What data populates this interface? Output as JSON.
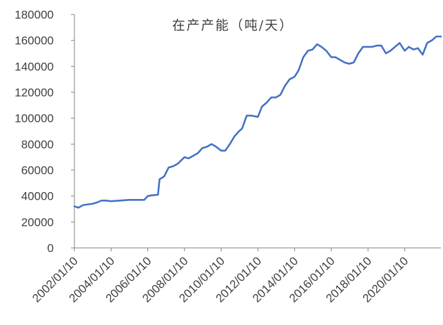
{
  "chart_data": {
    "type": "line",
    "title": "在产产能（吨/天）",
    "xlabel": "",
    "ylabel": "",
    "ylim": [
      0,
      180000
    ],
    "yticks": [
      0,
      20000,
      40000,
      60000,
      80000,
      100000,
      120000,
      140000,
      160000,
      180000
    ],
    "xlim": [
      "2002-01-10",
      "2021-12-31"
    ],
    "xticks": [
      "2002/01/10",
      "2004/01/10",
      "2006/01/10",
      "2008/01/10",
      "2010/01/10",
      "2012/01/10",
      "2014/01/10",
      "2016/01/10",
      "2018/01/10",
      "2020/01/10"
    ],
    "grid": false,
    "legend": "none",
    "color": "#4472C4",
    "series": [
      {
        "x": [
          "2002-01-10",
          "2002-04-01",
          "2002-07-01",
          "2002-10-01",
          "2003-01-01",
          "2003-04-01",
          "2003-07-01",
          "2003-10-01",
          "2004-01-10",
          "2004-07-01",
          "2005-01-01",
          "2005-04-01",
          "2005-07-01",
          "2005-11-01",
          "2006-01-10",
          "2006-04-01",
          "2006-08-01",
          "2006-09-01",
          "2006-12-01",
          "2007-03-01",
          "2007-06-01",
          "2007-09-01",
          "2008-01-10",
          "2008-04-01",
          "2008-07-01",
          "2008-10-01",
          "2009-01-01",
          "2009-04-01",
          "2009-07-01",
          "2009-10-01",
          "2010-01-10",
          "2010-04-01",
          "2010-07-01",
          "2010-10-01",
          "2011-01-01",
          "2011-03-01",
          "2011-06-01",
          "2011-09-01",
          "2012-01-10",
          "2012-04-01",
          "2012-07-01",
          "2012-10-01",
          "2013-01-01",
          "2013-04-01",
          "2013-07-01",
          "2013-10-01",
          "2014-01-10",
          "2014-04-01",
          "2014-07-01",
          "2014-10-01",
          "2015-01-01",
          "2015-04-01",
          "2015-07-01",
          "2015-10-01",
          "2016-01-10",
          "2016-04-01",
          "2016-07-01",
          "2016-10-01",
          "2017-01-01",
          "2017-04-01",
          "2017-07-01",
          "2017-10-01",
          "2018-01-10",
          "2018-04-01",
          "2018-07-01",
          "2018-10-01",
          "2019-01-01",
          "2019-04-01",
          "2019-07-01",
          "2019-10-01",
          "2020-01-10",
          "2020-04-01",
          "2020-07-01",
          "2020-10-01",
          "2021-01-01",
          "2021-04-01",
          "2021-07-01",
          "2021-10-01",
          "2021-12-31"
        ],
        "values": [
          32000,
          31000,
          33000,
          33500,
          34000,
          35000,
          36500,
          36500,
          36000,
          36500,
          37000,
          37000,
          37000,
          37000,
          40000,
          40500,
          41000,
          53000,
          55000,
          62000,
          63000,
          65000,
          70000,
          69000,
          71000,
          73000,
          77000,
          78000,
          80000,
          78000,
          75000,
          75000,
          80000,
          86000,
          90000,
          92000,
          102000,
          102000,
          101000,
          109000,
          112000,
          116000,
          116000,
          118000,
          125000,
          130000,
          132000,
          137000,
          147000,
          152000,
          153000,
          157000,
          155000,
          152000,
          147000,
          147000,
          145000,
          143000,
          142000,
          143000,
          150000,
          155000,
          155000,
          155000,
          156000,
          156000,
          150000,
          152000,
          155000,
          158000,
          152000,
          155000,
          153000,
          154000,
          149000,
          158000,
          160000,
          163000,
          163000
        ]
      }
    ]
  }
}
